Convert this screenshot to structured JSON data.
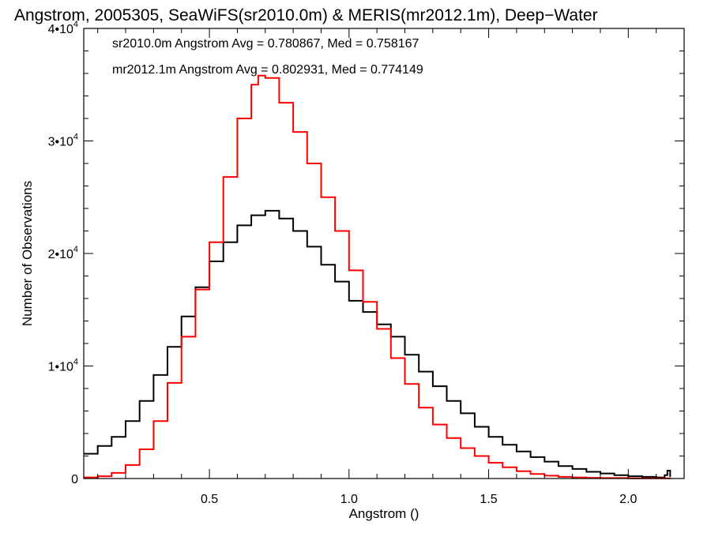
{
  "colors": {
    "series_1": "#000000",
    "series_2": "#ff0000",
    "background": "#ffffff"
  },
  "chart_data": {
    "type": "line",
    "step": true,
    "title": "Angstrom, 2005305, SeaWiFS(sr2010.0m) & MERIS(mr2012.1m), Deep−Water",
    "xlabel": "Angstrom ()",
    "ylabel": "Number of Observations",
    "xlim": [
      0.05,
      2.2
    ],
    "ylim": [
      0,
      40000
    ],
    "xticks": [
      0.5,
      1.0,
      1.5,
      2.0
    ],
    "xtick_labels": [
      "0.5",
      "1.0",
      "1.5",
      "2.0"
    ],
    "yticks": [
      0,
      10000,
      20000,
      30000,
      40000
    ],
    "ytick_labels": [
      {
        "mant": "0",
        "exp": ""
      },
      {
        "mant": "1•10",
        "exp": "4"
      },
      {
        "mant": "2•10",
        "exp": "4"
      },
      {
        "mant": "3•10",
        "exp": "4"
      },
      {
        "mant": "4•10",
        "exp": "4"
      }
    ],
    "grid": false,
    "legend": "top-left",
    "annotations": [
      {
        "text": "sr2010.0m Angstrom Avg = 0.780867, Med = 0.758167",
        "color": "#000000"
      },
      {
        "text": "mr2012.1m Angstrom Avg = 0.802931, Med = 0.774149",
        "color": "#ff0000"
      }
    ],
    "series": [
      {
        "color": "#000000",
        "x": [
          0.05,
          0.1,
          0.15,
          0.2,
          0.25,
          0.3,
          0.35,
          0.4,
          0.45,
          0.5,
          0.55,
          0.6,
          0.65,
          0.7,
          0.75,
          0.8,
          0.85,
          0.9,
          0.95,
          1.0,
          1.05,
          1.1,
          1.15,
          1.2,
          1.25,
          1.3,
          1.35,
          1.4,
          1.45,
          1.5,
          1.55,
          1.6,
          1.65,
          1.7,
          1.75,
          1.8,
          1.85,
          1.9,
          1.95,
          2.0,
          2.05,
          2.1,
          2.12,
          2.13,
          2.14,
          2.15
        ],
        "y": [
          2200,
          2900,
          3700,
          5100,
          6900,
          9200,
          11700,
          14400,
          17000,
          19300,
          21000,
          22500,
          23400,
          23800,
          23100,
          22000,
          20600,
          19000,
          17500,
          15800,
          14800,
          13700,
          12600,
          11000,
          9500,
          8200,
          6900,
          5800,
          4600,
          3700,
          3000,
          2400,
          1900,
          1500,
          1100,
          850,
          600,
          450,
          300,
          200,
          150,
          100,
          80,
          300,
          700,
          150
        ]
      },
      {
        "color": "#ff0000",
        "x": [
          0.05,
          0.1,
          0.15,
          0.2,
          0.25,
          0.3,
          0.35,
          0.4,
          0.45,
          0.5,
          0.55,
          0.6,
          0.65,
          0.675,
          0.7,
          0.75,
          0.8,
          0.85,
          0.9,
          0.95,
          1.0,
          1.05,
          1.1,
          1.15,
          1.2,
          1.25,
          1.3,
          1.35,
          1.4,
          1.45,
          1.5,
          1.55,
          1.6,
          1.65,
          1.7,
          1.75,
          1.8,
          1.85,
          1.9,
          2.0,
          2.15
        ],
        "y": [
          100,
          200,
          500,
          1200,
          2600,
          5100,
          8500,
          12600,
          16800,
          21000,
          26800,
          32000,
          35000,
          35800,
          35600,
          33400,
          30800,
          28000,
          25000,
          22000,
          18500,
          15700,
          13300,
          10700,
          8400,
          6300,
          4800,
          3600,
          2700,
          2000,
          1400,
          1000,
          650,
          400,
          250,
          150,
          100,
          60,
          40,
          20,
          10
        ]
      }
    ]
  }
}
